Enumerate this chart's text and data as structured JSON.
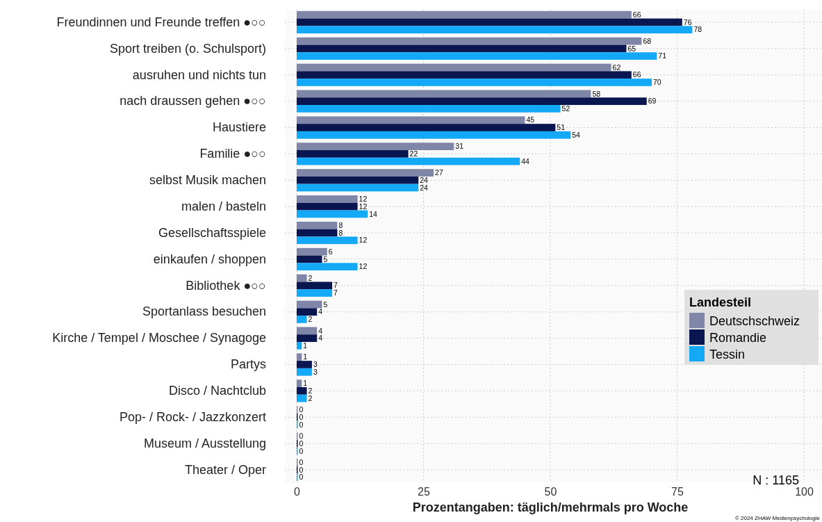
{
  "chart_data": {
    "type": "bar",
    "orientation": "horizontal",
    "xlabel": "Prozentangaben: täglich/mehrmals pro Woche",
    "legend_title": "Landesteil",
    "legend": "right",
    "grid": true,
    "data_labels": true,
    "categories": [
      "Freundinnen und Freunde treffen ●○○",
      "Sport treiben (o. Schulsport)",
      "ausruhen und nichts tun",
      "nach draussen gehen ●○○",
      "Haustiere",
      "Familie ●○○",
      "selbst Musik machen",
      "malen / basteln",
      "Gesellschaftsspiele",
      "einkaufen / shoppen",
      "Bibliothek ●○○",
      "Sportanlass besuchen",
      "Kirche / Tempel / Moschee / Synagoge",
      "Partys",
      "Disco / Nachtclub",
      "Pop- / Rock- / Jazzkonzert",
      "Museum / Ausstellung",
      "Theater / Oper"
    ],
    "series": [
      {
        "name": "Deutschschweiz",
        "color": "#7f86a8",
        "values": [
          66,
          68,
          62,
          58,
          45,
          31,
          27,
          12,
          8,
          6,
          2,
          5,
          4,
          1,
          1,
          0,
          0,
          0
        ]
      },
      {
        "name": "Romandie",
        "color": "#0a1650",
        "values": [
          76,
          65,
          66,
          69,
          51,
          22,
          24,
          12,
          8,
          5,
          7,
          4,
          4,
          3,
          2,
          0,
          0,
          0
        ]
      },
      {
        "name": "Tessin",
        "color": "#14a9f7",
        "values": [
          78,
          71,
          70,
          52,
          54,
          44,
          24,
          14,
          12,
          12,
          7,
          2,
          1,
          3,
          2,
          0,
          0,
          0
        ]
      }
    ],
    "xlim": [
      0,
      100
    ],
    "xticks": [
      0,
      25,
      50,
      75,
      100
    ],
    "annotations": [
      "N : 1165",
      "© 2024 ZHAW Medienpsychologie"
    ]
  }
}
